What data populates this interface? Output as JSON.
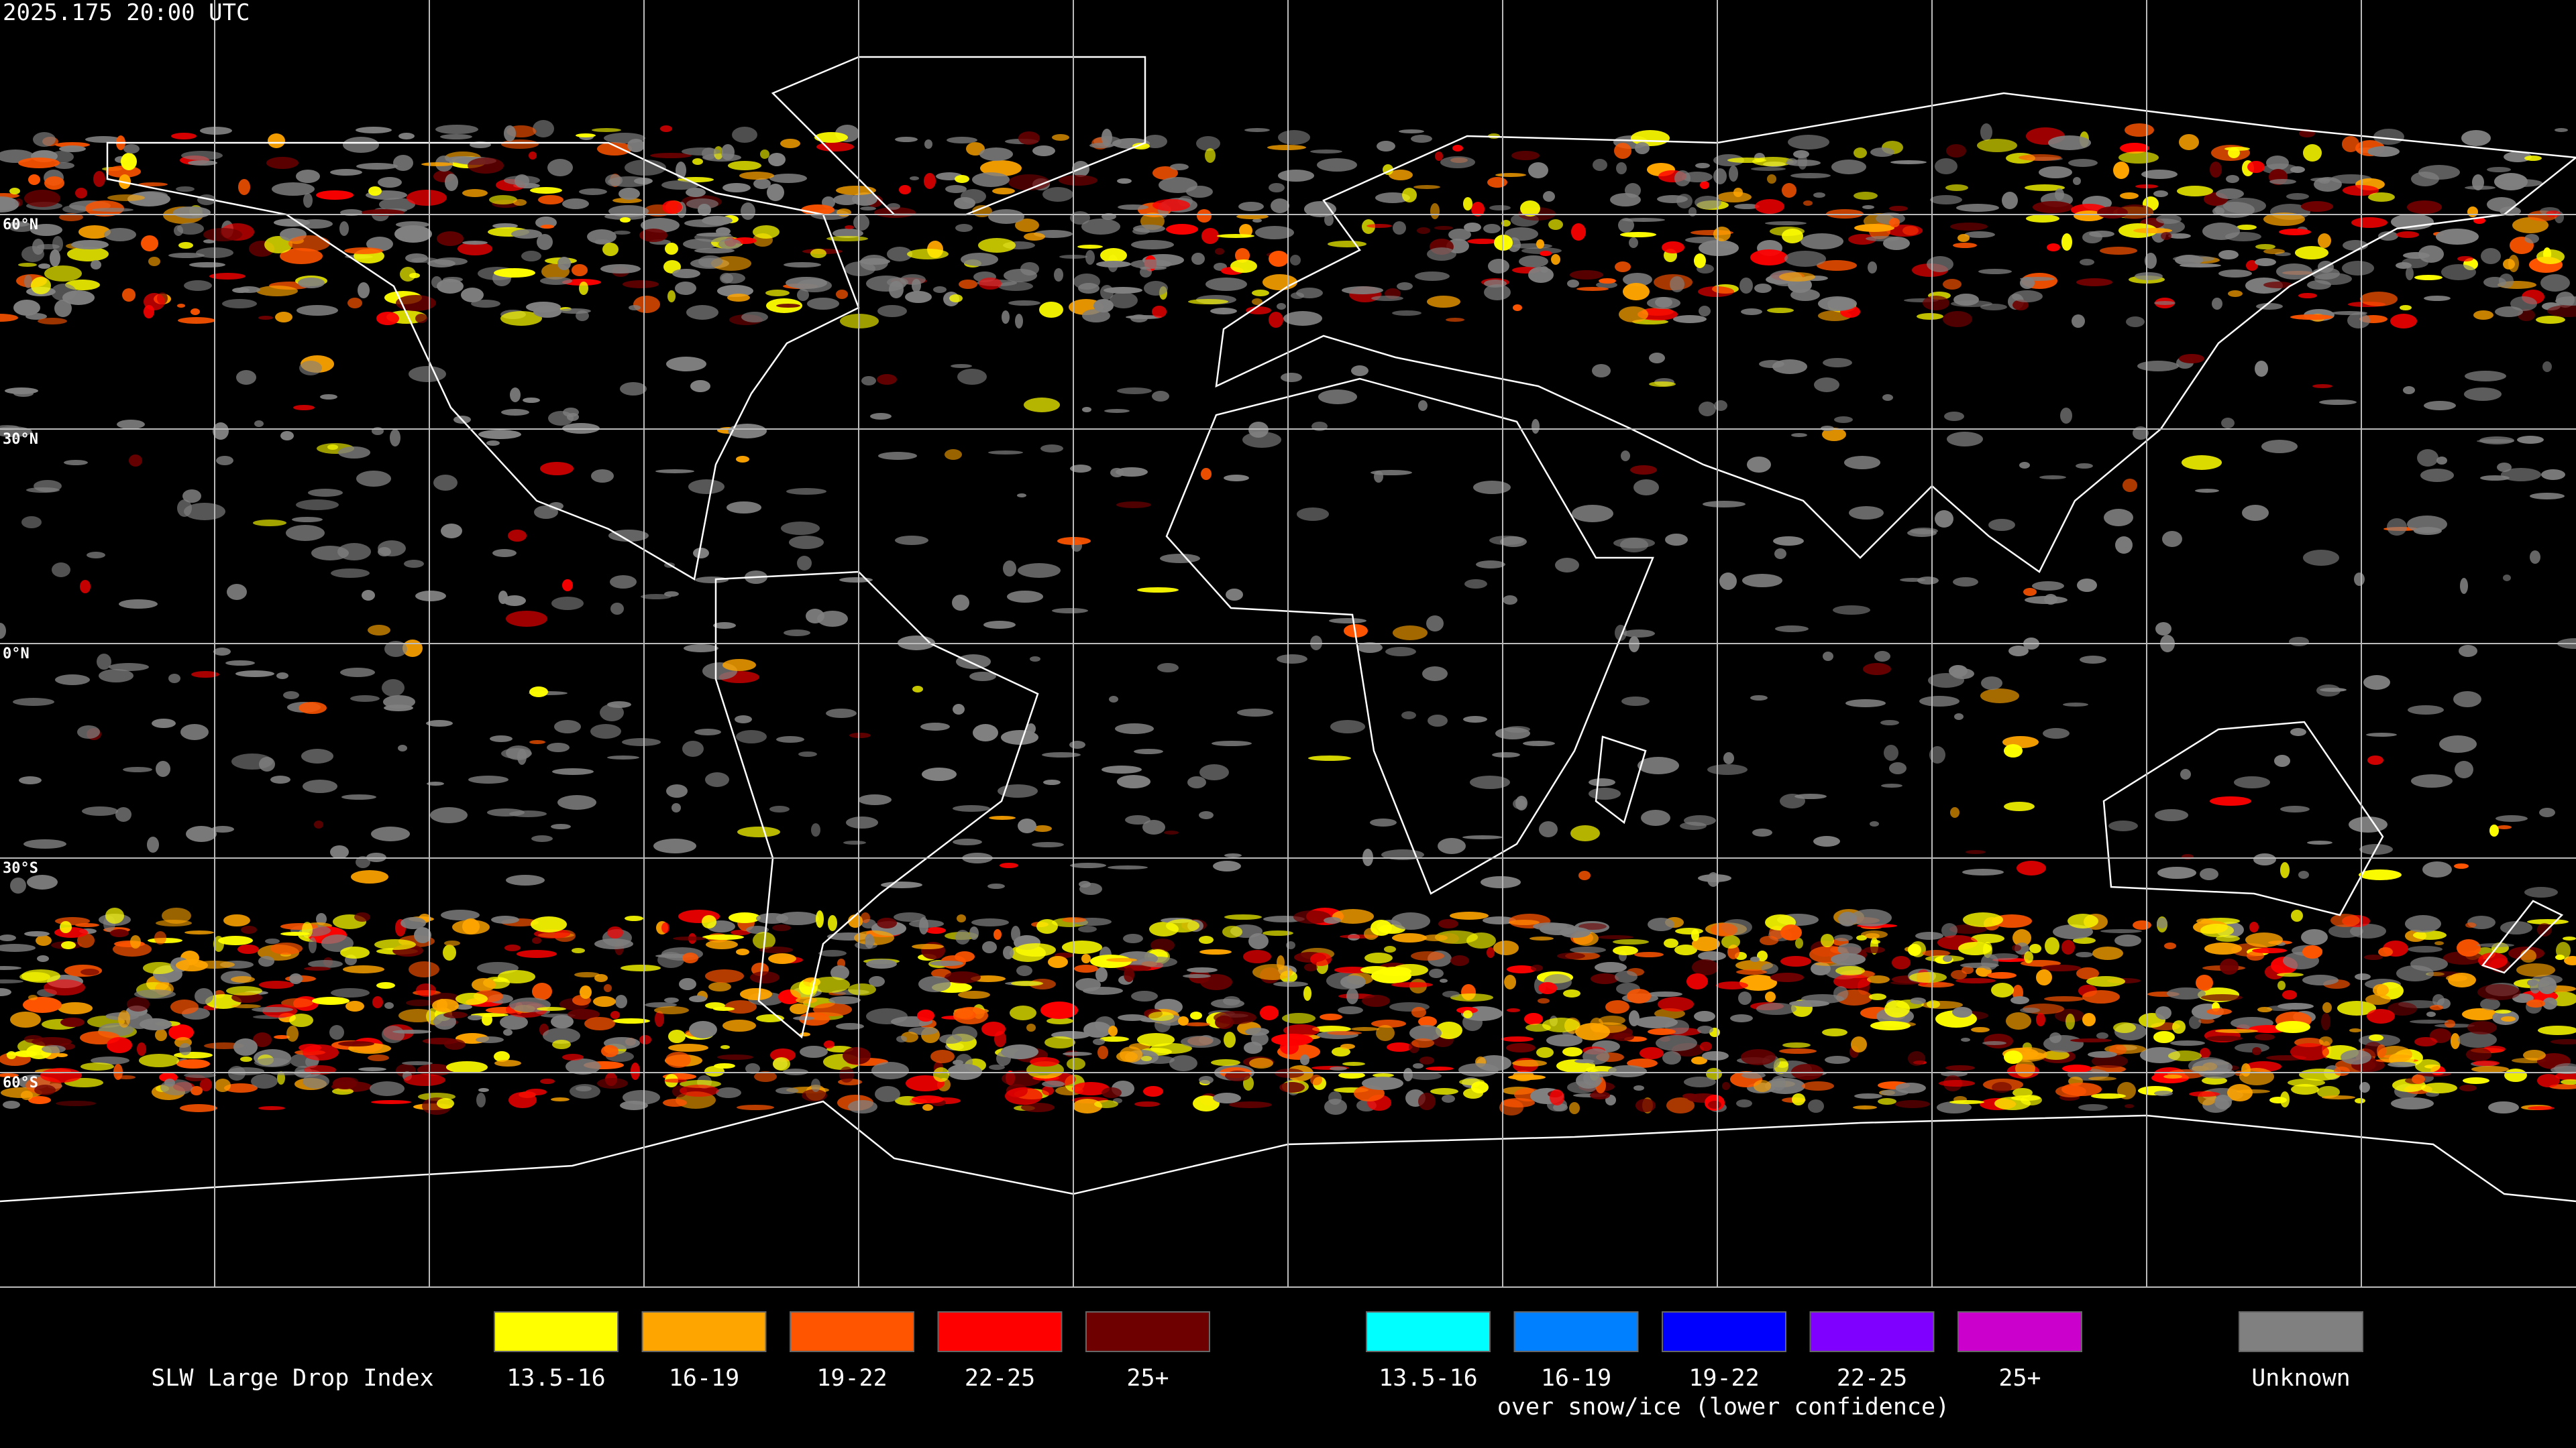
{
  "timestamp": "2025.175 20:00 UTC",
  "latitude_labels": [
    "60°N",
    "30°N",
    "0°N",
    "30°S",
    "60°S"
  ],
  "legend": {
    "title": "SLW Large Drop Index",
    "groups": [
      {
        "items": [
          {
            "label": "13.5-16",
            "color": "#ffff00"
          },
          {
            "label": "16-19",
            "color": "#ffa500"
          },
          {
            "label": "19-22",
            "color": "#ff5500"
          },
          {
            "label": "22-25",
            "color": "#ff0000"
          },
          {
            "label": "25+",
            "color": "#6e0000"
          }
        ]
      },
      {
        "items": [
          {
            "label": "13.5-16",
            "color": "#00ffff"
          },
          {
            "label": "16-19",
            "color": "#0080ff"
          },
          {
            "label": "19-22",
            "color": "#0000ff"
          },
          {
            "label": "22-25",
            "color": "#8000ff"
          },
          {
            "label": "25+",
            "color": "#cc00cc"
          }
        ]
      }
    ],
    "snow_note": "over snow/ice (lower confidence)",
    "unknown": {
      "label": "Unknown",
      "color": "#808080"
    }
  }
}
